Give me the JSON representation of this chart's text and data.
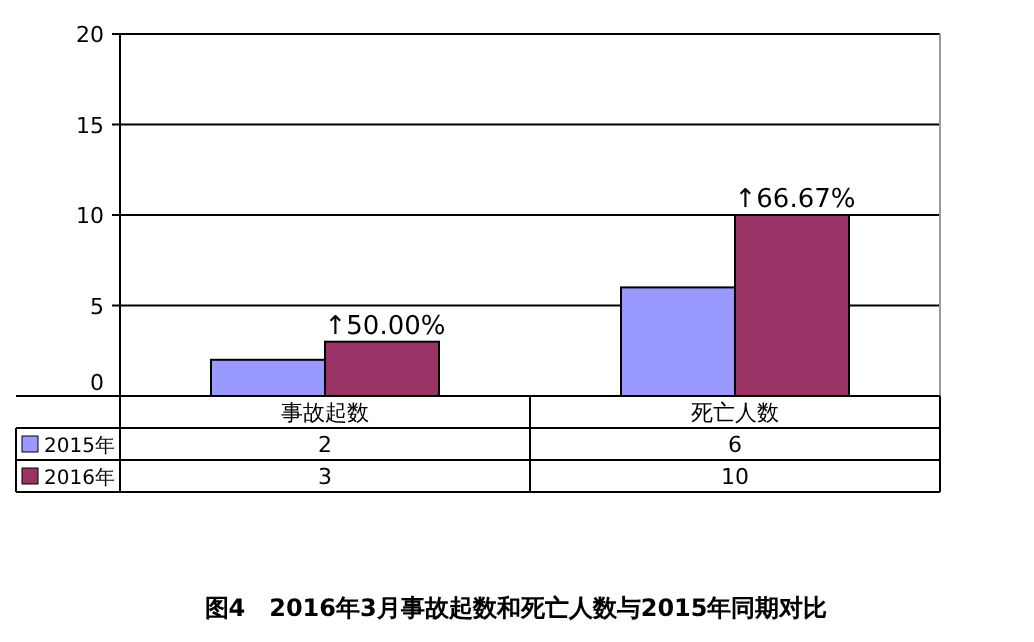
{
  "chart_data": {
    "type": "bar",
    "title": "图4　2016年3月事故起数和死亡人数与2015年同期对比",
    "categories": [
      "事故起数",
      "死亡人数"
    ],
    "series": [
      {
        "name": "2015年",
        "color": "#9999ff",
        "values": [
          2,
          6
        ]
      },
      {
        "name": "2016年",
        "color": "#993366",
        "values": [
          3,
          10
        ]
      }
    ],
    "ylim": [
      0,
      20
    ],
    "yticks": [
      0,
      5,
      10,
      15,
      20
    ],
    "grid": "y",
    "legend": "bottom",
    "data_labels": true,
    "annotations": [
      {
        "text": "↑50.00%",
        "x": "事故起数",
        "y": 3
      },
      {
        "text": "↑66.67%",
        "x": "死亡人数",
        "y": 10
      }
    ]
  }
}
